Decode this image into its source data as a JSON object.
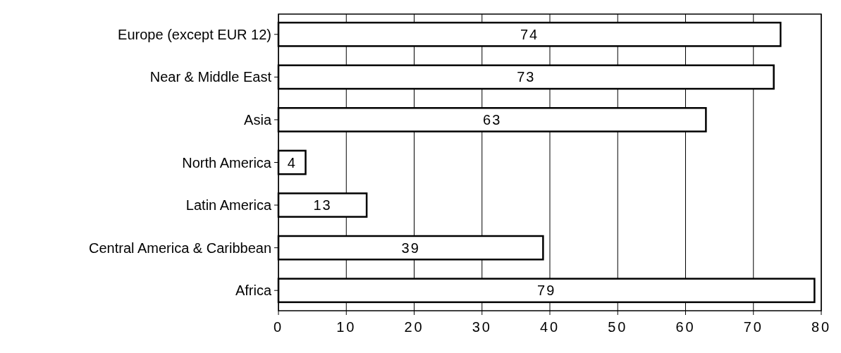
{
  "chart_data": {
    "type": "bar",
    "orientation": "horizontal",
    "categories": [
      "Europe (except EUR 12)",
      "Near & Middle East",
      "Asia",
      "North America",
      "Latin America",
      "Central America & Caribbean",
      "Africa"
    ],
    "values": [
      74,
      73,
      63,
      4,
      13,
      39,
      79
    ],
    "color": "#ffffff",
    "xlim": [
      0,
      80
    ],
    "xticks": [
      0,
      10,
      20,
      30,
      40,
      50,
      60,
      70,
      80
    ],
    "grid": "x",
    "data_labels": true
  }
}
